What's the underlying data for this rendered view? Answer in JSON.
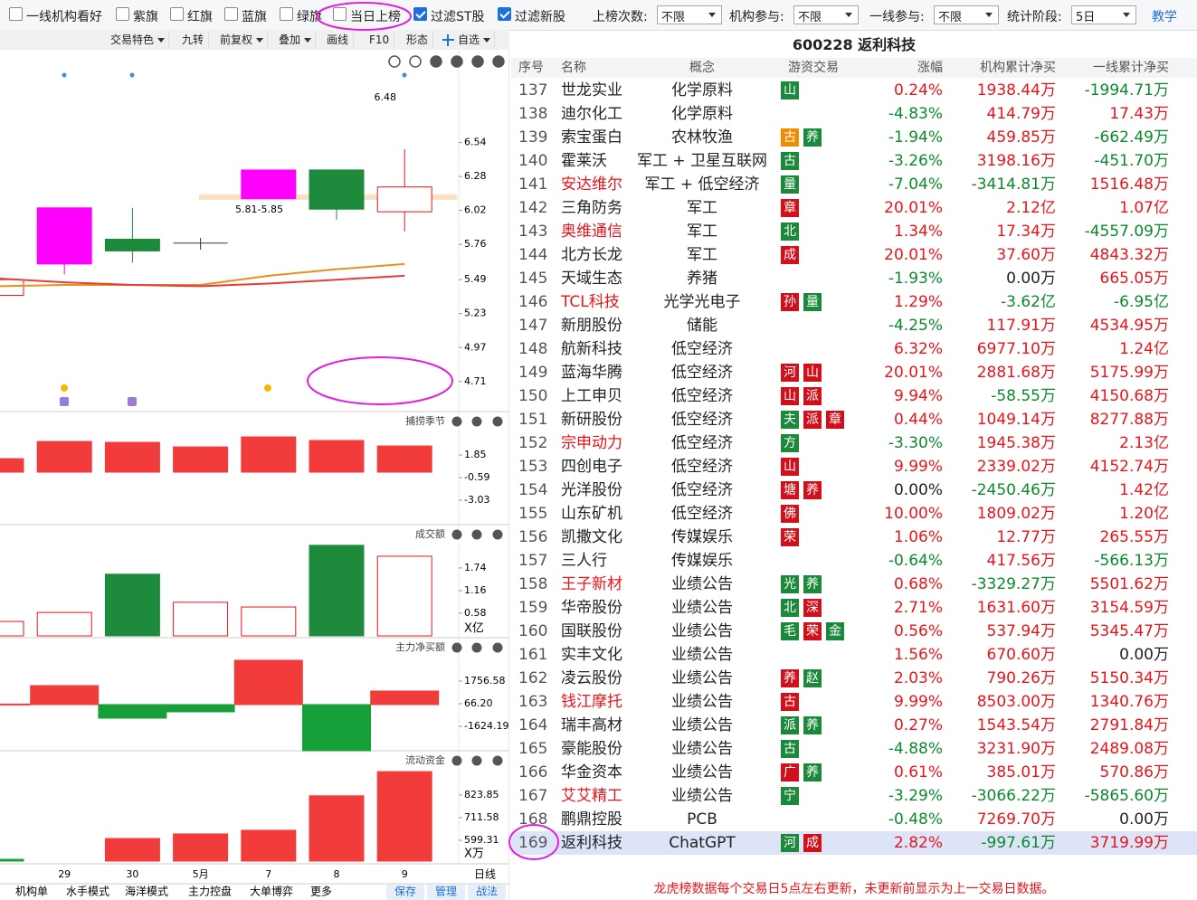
{
  "toolbar": {
    "filters": [
      {
        "label": "一线机构看好",
        "checked": false
      },
      {
        "label": "紫旗",
        "checked": false
      },
      {
        "label": "红旗",
        "checked": false
      },
      {
        "label": "蓝旗",
        "checked": false
      },
      {
        "label": "绿旗",
        "checked": false
      },
      {
        "label": "当日上榜",
        "checked": false
      },
      {
        "label": "过滤ST股",
        "checked": true
      },
      {
        "label": "过滤新股",
        "checked": true
      }
    ],
    "selects": [
      {
        "label": "上榜次数:",
        "value": "不限"
      },
      {
        "label": "机构参与:",
        "value": "不限"
      },
      {
        "label": "一线参与:",
        "value": "不限"
      },
      {
        "label": "统计阶段:",
        "value": "5日"
      }
    ],
    "help": "教学"
  },
  "chart": {
    "buttons": [
      {
        "label": "交易特色",
        "dropdown": true
      },
      {
        "label": "九转",
        "dropdown": false
      },
      {
        "label": "前复权",
        "dropdown": true
      },
      {
        "label": "叠加",
        "dropdown": true
      },
      {
        "label": "画线",
        "dropdown": false
      },
      {
        "label": "F10",
        "dropdown": false
      },
      {
        "label": "形态",
        "dropdown": false
      },
      {
        "label": "自选",
        "dropdown": true,
        "icon": "plus"
      }
    ],
    "dates": [
      null,
      "29",
      "30",
      "5月",
      "7",
      "8",
      "9"
    ],
    "period": "日线",
    "price": {
      "ylim": [
        4.48,
        7.23
      ],
      "yticks": [
        6.54,
        6.28,
        6.02,
        5.76,
        5.49,
        5.23,
        4.97,
        4.71
      ],
      "candles": [
        {
          "open": 5.37,
          "close": 5.49,
          "high": 5.49,
          "low": 5.37,
          "color": "#e8141a",
          "hollow": true
        },
        {
          "open": 5.61,
          "close": 6.04,
          "high": 6.04,
          "low": 5.53,
          "color": "#ff00ff",
          "hollow": false
        },
        {
          "open": 5.8,
          "close": 5.71,
          "high": 6.04,
          "low": 5.62,
          "color": "#1d8a3c",
          "hollow": false
        },
        {
          "open": 5.77,
          "close": 5.77,
          "high": 5.81,
          "low": 5.72,
          "color": "#333333",
          "hollow": false
        },
        {
          "open": 6.11,
          "close": 6.33,
          "high": 6.33,
          "low": 6.11,
          "color": "#ff00ff",
          "hollow": false
        },
        {
          "open": 6.33,
          "close": 6.03,
          "high": 6.33,
          "low": 5.95,
          "color": "#1d8a3c",
          "hollow": false
        },
        {
          "open": 6.01,
          "close": 6.2,
          "high": 6.49,
          "low": 5.86,
          "color": "#e8141a",
          "hollow": true
        }
      ],
      "ma": [
        {
          "color": "#e8901e",
          "values": [
            5.44,
            5.45,
            5.45,
            5.45,
            5.52,
            5.57,
            5.61
          ]
        },
        {
          "color": "#e83c3c",
          "values": [
            5.5,
            5.47,
            5.45,
            5.44,
            5.46,
            5.49,
            5.52
          ]
        }
      ],
      "annotations": [
        "6.48",
        "5.81-5.85"
      ]
    },
    "panels": [
      {
        "label": "捕捞季节",
        "ylim": [
          -5.66,
          4.59
        ],
        "yticks": [
          1.85,
          -0.59,
          -3.03
        ],
        "values": [
          1.46,
          3.32,
          3.22,
          2.73,
          3.81,
          3.42,
          2.83
        ],
        "colors": [
          "#f23c3c",
          "#f23c3c",
          "#f23c3c",
          "#f23c3c",
          "#f23c3c",
          "#f23c3c",
          "#f23c3c"
        ],
        "hollow": [
          false,
          false,
          false,
          false,
          false,
          false,
          false
        ]
      },
      {
        "label": "成交额",
        "unit": "X亿",
        "ylim": [
          0,
          2.78
        ],
        "yticks": [
          1.74,
          1.16,
          0.58
        ],
        "values": [
          0.37,
          0.6,
          1.58,
          0.86,
          0.74,
          2.32,
          2.04
        ],
        "colors": [
          "#e8141a",
          "#e8141a",
          "#1d8a3c",
          "#e8141a",
          "#e8141a",
          "#1d8a3c",
          "#e8141a"
        ],
        "hollow": [
          true,
          true,
          false,
          true,
          true,
          false,
          true
        ]
      },
      {
        "label": "主力净买额",
        "ylim": [
          -3449,
          4798
        ],
        "yticks": [
          1756.58,
          {
            "value": 66.2,
            "label": "66.20"
          },
          -1624.19
        ],
        "values": [
          40,
          1420,
          -1014,
          -540,
          3314,
          -3450,
          1015
        ],
        "colors": [
          "#f23c3c",
          "#f23c3c",
          "#17a03a",
          "#17a03a",
          "#f23c3c",
          "#17a03a",
          "#f23c3c"
        ],
        "hollow": [
          false,
          false,
          false,
          false,
          false,
          false,
          false
        ],
        "wide": true
      },
      {
        "label": "流动资金",
        "unit": "X万",
        "ylim": [
          496,
          1030
        ],
        "yticks": [
          823.85,
          711.58,
          599.31
        ],
        "values": [
          505,
          null,
          608,
          631,
          649,
          820,
          940
        ],
        "colors": [
          "#17a03a",
          "#f23c3c",
          "#f23c3c",
          "#f23c3c",
          "#f23c3c",
          "#f23c3c",
          "#f23c3c"
        ],
        "hollow": [
          false,
          false,
          false,
          false,
          false,
          false,
          false
        ]
      }
    ],
    "tabs": [
      "机构单",
      "水手模式",
      "海洋模式",
      "主力控盘",
      "大单博弈",
      "更多"
    ],
    "actions": [
      "保存",
      "管理",
      "战法"
    ]
  },
  "table": {
    "title": "600228  返利科技",
    "headers": [
      "序号",
      "名称",
      "概念",
      "游资交易",
      "涨幅",
      "机构累计净买",
      "一线累计净买"
    ],
    "rows": [
      {
        "no": 137,
        "name": "世龙实业",
        "concept": "化学原料",
        "tags": [
          {
            "t": "山",
            "c": "green"
          }
        ],
        "change": "0.24%",
        "inst": "1938.44万",
        "yx": "-1994.71万"
      },
      {
        "no": 138,
        "name": "迪尔化工",
        "concept": "化学原料",
        "tags": [],
        "change": "-4.83%",
        "inst": "414.79万",
        "yx": "17.43万"
      },
      {
        "no": 139,
        "name": "索宝蛋白",
        "concept": "农林牧渔",
        "tags": [
          {
            "t": "古",
            "c": "orange"
          },
          {
            "t": "养",
            "c": "green"
          }
        ],
        "change": "-1.94%",
        "inst": "459.85万",
        "yx": "-662.49万"
      },
      {
        "no": 140,
        "name": "霍莱沃",
        "concept": "军工 + 卫星互联网",
        "tags": [
          {
            "t": "古",
            "c": "green"
          }
        ],
        "change": "-3.26%",
        "inst": "3198.16万",
        "yx": "-451.70万"
      },
      {
        "no": 141,
        "name": "安达维尔",
        "name_red": true,
        "concept": "军工 + 低空经济",
        "tags": [
          {
            "t": "量",
            "c": "green"
          }
        ],
        "change": "-7.04%",
        "inst": "-3414.81万",
        "yx": "1516.48万"
      },
      {
        "no": 142,
        "name": "三角防务",
        "concept": "军工",
        "tags": [
          {
            "t": "章",
            "c": "red"
          }
        ],
        "change": "20.01%",
        "inst": "2.12亿",
        "yx": "1.07亿"
      },
      {
        "no": 143,
        "name": "奥维通信",
        "name_red": true,
        "concept": "军工",
        "tags": [
          {
            "t": "北",
            "c": "green"
          }
        ],
        "change": "1.34%",
        "inst": "17.34万",
        "yx": "-4557.09万"
      },
      {
        "no": 144,
        "name": "北方长龙",
        "concept": "军工",
        "tags": [
          {
            "t": "成",
            "c": "red"
          }
        ],
        "change": "20.01%",
        "inst": "37.60万",
        "yx": "4843.32万"
      },
      {
        "no": 145,
        "name": "天域生态",
        "concept": "养猪",
        "tags": [],
        "change": "-1.93%",
        "inst": "0.00万",
        "yx": "665.05万"
      },
      {
        "no": 146,
        "name": "TCL科技",
        "name_red": true,
        "concept": "光学光电子",
        "tags": [
          {
            "t": "孙",
            "c": "red"
          },
          {
            "t": "量",
            "c": "green"
          }
        ],
        "change": "1.29%",
        "inst": "-3.62亿",
        "yx": "-6.95亿"
      },
      {
        "no": 147,
        "name": "新朋股份",
        "concept": "储能",
        "tags": [],
        "change": "-4.25%",
        "inst": "117.91万",
        "yx": "4534.95万"
      },
      {
        "no": 148,
        "name": "航新科技",
        "concept": "低空经济",
        "tags": [],
        "change": "6.32%",
        "inst": "6977.10万",
        "yx": "1.24亿"
      },
      {
        "no": 149,
        "name": "蓝海华腾",
        "concept": "低空经济",
        "tags": [
          {
            "t": "河",
            "c": "red"
          },
          {
            "t": "山",
            "c": "red"
          }
        ],
        "change": "20.01%",
        "inst": "2881.68万",
        "yx": "5175.99万"
      },
      {
        "no": 150,
        "name": "上工申贝",
        "concept": "低空经济",
        "tags": [
          {
            "t": "山",
            "c": "red"
          },
          {
            "t": "派",
            "c": "red"
          }
        ],
        "change": "9.94%",
        "inst": "-58.55万",
        "yx": "4150.68万"
      },
      {
        "no": 151,
        "name": "新研股份",
        "concept": "低空经济",
        "tags": [
          {
            "t": "夫",
            "c": "green"
          },
          {
            "t": "派",
            "c": "red"
          },
          {
            "t": "章",
            "c": "red"
          }
        ],
        "change": "0.44%",
        "inst": "1049.14万",
        "yx": "8277.88万"
      },
      {
        "no": 152,
        "name": "宗申动力",
        "name_red": true,
        "concept": "低空经济",
        "tags": [
          {
            "t": "方",
            "c": "green"
          }
        ],
        "change": "-3.30%",
        "inst": "1945.38万",
        "yx": "2.13亿"
      },
      {
        "no": 153,
        "name": "四创电子",
        "concept": "低空经济",
        "tags": [
          {
            "t": "山",
            "c": "red"
          }
        ],
        "change": "9.99%",
        "inst": "2339.02万",
        "yx": "4152.74万"
      },
      {
        "no": 154,
        "name": "光洋股份",
        "concept": "低空经济",
        "tags": [
          {
            "t": "塘",
            "c": "red"
          },
          {
            "t": "养",
            "c": "red"
          }
        ],
        "change": "0.00%",
        "inst": "-2450.46万",
        "yx": "1.42亿"
      },
      {
        "no": 155,
        "name": "山东矿机",
        "concept": "低空经济",
        "tags": [
          {
            "t": "佛",
            "c": "red"
          }
        ],
        "change": "10.00%",
        "inst": "1809.02万",
        "yx": "1.20亿"
      },
      {
        "no": 156,
        "name": "凯撒文化",
        "concept": "传媒娱乐",
        "tags": [
          {
            "t": "荣",
            "c": "red"
          }
        ],
        "change": "1.06%",
        "inst": "12.77万",
        "yx": "265.55万"
      },
      {
        "no": 157,
        "name": "三人行",
        "concept": "传媒娱乐",
        "tags": [],
        "change": "-0.64%",
        "inst": "417.56万",
        "yx": "-566.13万"
      },
      {
        "no": 158,
        "name": "王子新材",
        "name_red": true,
        "concept": "业绩公告",
        "tags": [
          {
            "t": "光",
            "c": "green"
          },
          {
            "t": "养",
            "c": "green"
          }
        ],
        "change": "0.68%",
        "inst": "-3329.27万",
        "yx": "5501.62万"
      },
      {
        "no": 159,
        "name": "华帝股份",
        "concept": "业绩公告",
        "tags": [
          {
            "t": "北",
            "c": "green"
          },
          {
            "t": "深",
            "c": "red"
          }
        ],
        "change": "2.71%",
        "inst": "1631.60万",
        "yx": "3154.59万"
      },
      {
        "no": 160,
        "name": "国联股份",
        "concept": "业绩公告",
        "tags": [
          {
            "t": "毛",
            "c": "green"
          },
          {
            "t": "荣",
            "c": "red"
          },
          {
            "t": "金",
            "c": "green"
          }
        ],
        "change": "0.56%",
        "inst": "537.94万",
        "yx": "5345.47万"
      },
      {
        "no": 161,
        "name": "实丰文化",
        "concept": "业绩公告",
        "tags": [],
        "change": "1.56%",
        "inst": "670.60万",
        "yx": "0.00万"
      },
      {
        "no": 162,
        "name": "凌云股份",
        "concept": "业绩公告",
        "tags": [
          {
            "t": "养",
            "c": "red"
          },
          {
            "t": "赵",
            "c": "green"
          }
        ],
        "change": "2.03%",
        "inst": "790.26万",
        "yx": "5150.34万"
      },
      {
        "no": 163,
        "name": "钱江摩托",
        "name_red": true,
        "concept": "业绩公告",
        "tags": [
          {
            "t": "古",
            "c": "red"
          }
        ],
        "change": "9.99%",
        "inst": "8503.00万",
        "yx": "1340.76万"
      },
      {
        "no": 164,
        "name": "瑞丰高材",
        "concept": "业绩公告",
        "tags": [
          {
            "t": "派",
            "c": "green"
          },
          {
            "t": "养",
            "c": "green"
          }
        ],
        "change": "0.27%",
        "inst": "1543.54万",
        "yx": "2791.84万"
      },
      {
        "no": 165,
        "name": "豪能股份",
        "concept": "业绩公告",
        "tags": [
          {
            "t": "古",
            "c": "green"
          }
        ],
        "change": "-4.88%",
        "inst": "3231.90万",
        "yx": "2489.08万"
      },
      {
        "no": 166,
        "name": "华金资本",
        "concept": "业绩公告",
        "tags": [
          {
            "t": "广",
            "c": "red"
          },
          {
            "t": "养",
            "c": "green"
          }
        ],
        "change": "0.61%",
        "inst": "385.01万",
        "yx": "570.86万"
      },
      {
        "no": 167,
        "name": "艾艾精工",
        "name_red": true,
        "concept": "业绩公告",
        "tags": [
          {
            "t": "宁",
            "c": "green"
          }
        ],
        "change": "-3.29%",
        "inst": "-3066.22万",
        "yx": "-5865.60万"
      },
      {
        "no": 168,
        "name": "鹏鼎控股",
        "concept": "PCB",
        "tags": [],
        "change": "-0.48%",
        "inst": "7269.70万",
        "yx": "0.00万"
      },
      {
        "no": 169,
        "name": "返利科技",
        "concept": "ChatGPT",
        "tags": [
          {
            "t": "河",
            "c": "green"
          },
          {
            "t": "成",
            "c": "red"
          }
        ],
        "change": "2.82%",
        "inst": "-997.61万",
        "yx": "3719.99万",
        "selected": true
      }
    ]
  },
  "footer": "龙虎榜数据每个交易日5点左右更新，未更新前显示为上一交易日数据。"
}
